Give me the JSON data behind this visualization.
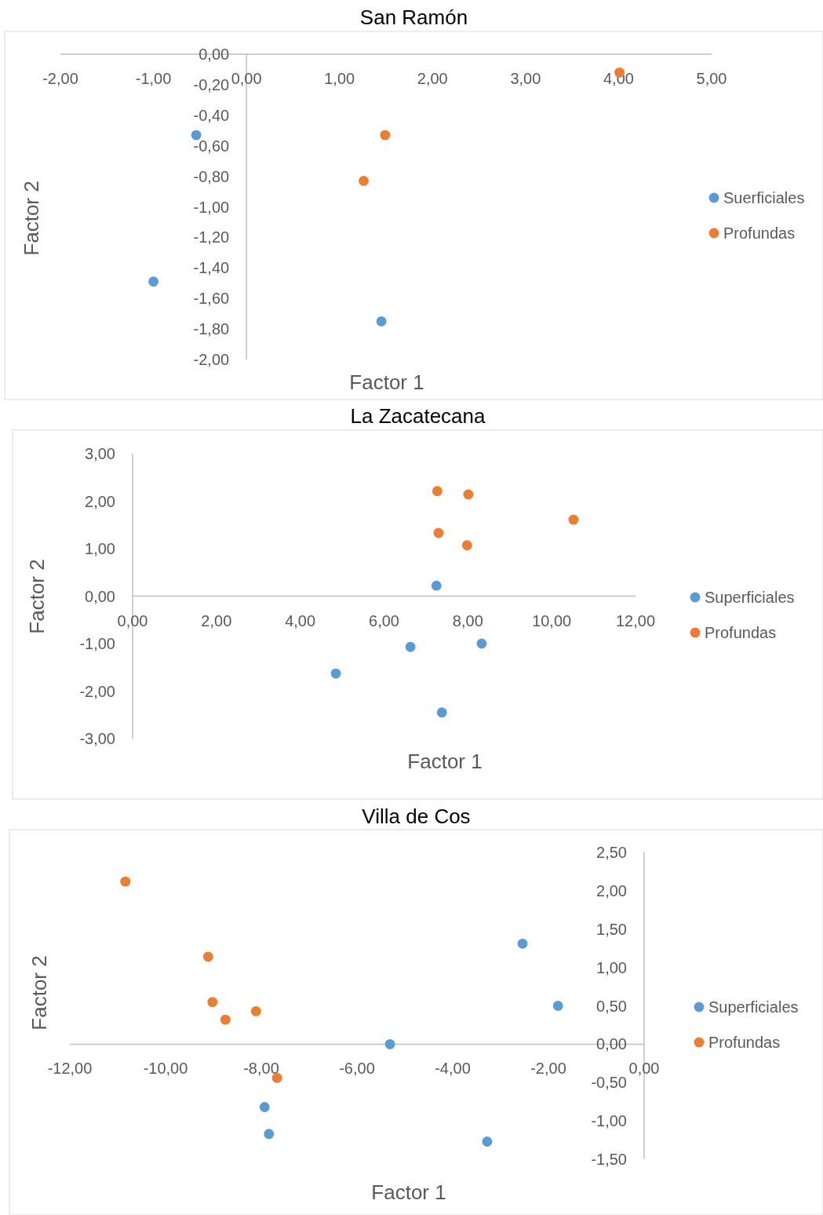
{
  "chart_data": [
    {
      "type": "scatter",
      "title": "San Ramón",
      "xlabel": "Factor 1",
      "ylabel": "Factor 2",
      "legend": "right",
      "marker": "circle",
      "grid": false,
      "xlim": [
        -2,
        5
      ],
      "ylim": [
        -2,
        0
      ],
      "xticks": [
        {
          "value": -2,
          "label": "-2,00"
        },
        {
          "value": -1,
          "label": "-1,00"
        },
        {
          "value": 0,
          "label": "0,00"
        },
        {
          "value": 1,
          "label": "1,00"
        },
        {
          "value": 2,
          "label": "2,00"
        },
        {
          "value": 3,
          "label": "3,00"
        },
        {
          "value": 4,
          "label": "4,00"
        },
        {
          "value": 5,
          "label": "5,00"
        }
      ],
      "yticks": [
        {
          "value": 0,
          "label": "0,00"
        },
        {
          "value": -0.2,
          "label": "-0,20"
        },
        {
          "value": -0.4,
          "label": "-0,40"
        },
        {
          "value": -0.6,
          "label": "-0,60"
        },
        {
          "value": -0.8,
          "label": "-0,80"
        },
        {
          "value": -1,
          "label": "-1,00"
        },
        {
          "value": -1.2,
          "label": "-1,20"
        },
        {
          "value": -1.4,
          "label": "-1,40"
        },
        {
          "value": -1.6,
          "label": "-1,60"
        },
        {
          "value": -1.8,
          "label": "-1,80"
        },
        {
          "value": -2,
          "label": "-2,00"
        }
      ],
      "series": [
        {
          "name": "Suerficiales",
          "color": "#5b9bd5",
          "x": [
            -0.54,
            -1.0,
            1.45
          ],
          "values": [
            -0.53,
            -1.49,
            -1.75
          ]
        },
        {
          "name": "Profundas",
          "color": "#ed7d31",
          "x": [
            4.01,
            1.49,
            1.26
          ],
          "values": [
            -0.12,
            -0.53,
            -0.83
          ]
        }
      ]
    },
    {
      "type": "scatter",
      "title": "La Zacatecana",
      "xlabel": "Factor 1",
      "ylabel": "Factor 2",
      "legend": "right",
      "marker": "circle",
      "grid": false,
      "xlim": [
        0,
        12
      ],
      "ylim": [
        -3,
        3
      ],
      "xticks": [
        {
          "value": 0,
          "label": "0,00"
        },
        {
          "value": 2,
          "label": "2,00"
        },
        {
          "value": 4,
          "label": "4,00"
        },
        {
          "value": 6,
          "label": "6,00"
        },
        {
          "value": 8,
          "label": "8,00"
        },
        {
          "value": 10,
          "label": "10,00"
        },
        {
          "value": 12,
          "label": "12,00"
        }
      ],
      "yticks": [
        {
          "value": 3,
          "label": "3,00"
        },
        {
          "value": 2,
          "label": "2,00"
        },
        {
          "value": 1,
          "label": "1,00"
        },
        {
          "value": 0,
          "label": "0,00"
        },
        {
          "value": -1,
          "label": "-1,00"
        },
        {
          "value": -2,
          "label": "-2,00"
        },
        {
          "value": -3,
          "label": "-3,00"
        }
      ],
      "series": [
        {
          "name": "Superficiales",
          "color": "#5b9bd5",
          "x": [
            7.25,
            6.63,
            8.33,
            4.85,
            7.38
          ],
          "values": [
            0.22,
            -1.07,
            -1.0,
            -1.63,
            -2.45
          ]
        },
        {
          "name": "Profundas",
          "color": "#ed7d31",
          "x": [
            7.27,
            8.01,
            10.52,
            7.3,
            7.98
          ],
          "values": [
            2.21,
            2.14,
            1.61,
            1.33,
            1.07
          ]
        }
      ]
    },
    {
      "type": "scatter",
      "title": "Villa de Cos",
      "xlabel": "Factor 1",
      "ylabel": "Factor 2",
      "legend": "right",
      "marker": "circle",
      "grid": false,
      "xlim": [
        -12,
        0
      ],
      "ylim": [
        -1.5,
        2.5
      ],
      "xticks": [
        {
          "value": -12,
          "label": "-12,00"
        },
        {
          "value": -10,
          "label": "-10,00"
        },
        {
          "value": -8,
          "label": "-8,00"
        },
        {
          "value": -6,
          "label": "-6,00"
        },
        {
          "value": -4,
          "label": "-4,00"
        },
        {
          "value": -2,
          "label": "-2,00"
        },
        {
          "value": 0,
          "label": "0,00"
        }
      ],
      "yticks": [
        {
          "value": 2.5,
          "label": "2,50"
        },
        {
          "value": 2,
          "label": "2,00"
        },
        {
          "value": 1.5,
          "label": "1,50"
        },
        {
          "value": 1,
          "label": "1,00"
        },
        {
          "value": 0.5,
          "label": "0,50"
        },
        {
          "value": 0,
          "label": "0,00"
        },
        {
          "value": -0.5,
          "label": "-0,50"
        },
        {
          "value": -1,
          "label": "-1,00"
        },
        {
          "value": -1.5,
          "label": "-1,50"
        }
      ],
      "series": [
        {
          "name": "Superficiales",
          "color": "#5b9bd5",
          "x": [
            -2.54,
            -1.8,
            -5.31,
            -7.93,
            -7.84,
            -3.28
          ],
          "values": [
            1.31,
            0.5,
            0.0,
            -0.82,
            -1.17,
            -1.27
          ]
        },
        {
          "name": "Profundas",
          "color": "#ed7d31",
          "x": [
            -10.84,
            -9.11,
            -9.02,
            -8.75,
            -8.11,
            -7.67
          ],
          "values": [
            2.12,
            1.14,
            0.55,
            0.32,
            0.43,
            -0.44
          ]
        }
      ]
    }
  ]
}
